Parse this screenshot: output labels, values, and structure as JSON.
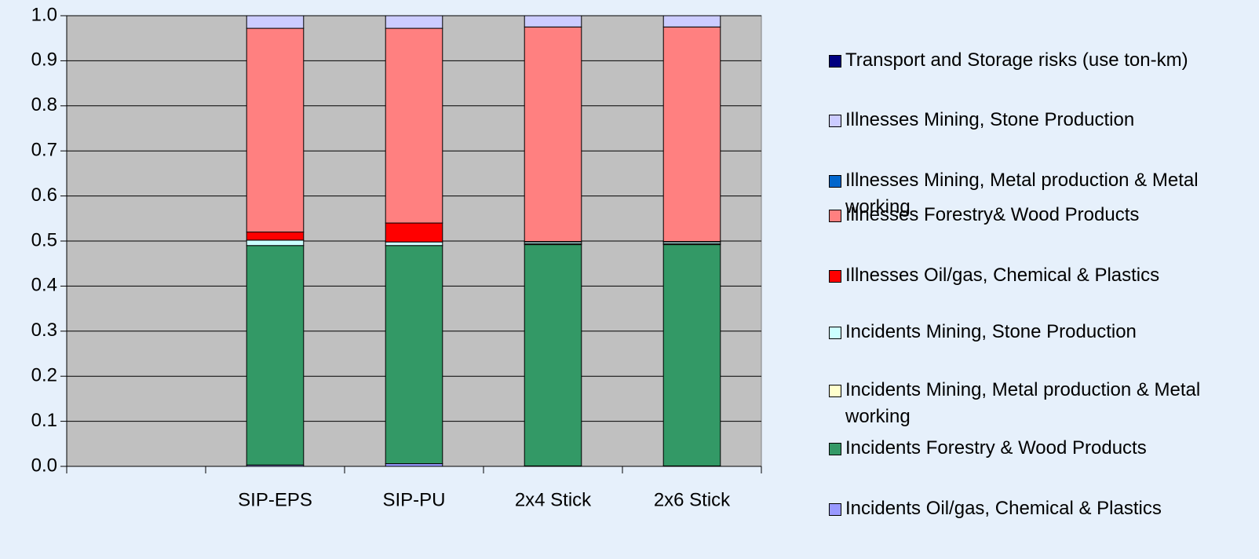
{
  "chart_data": {
    "type": "stacked_bar",
    "categories": [
      null,
      "SIP-EPS",
      "SIP-PU",
      "2x4 Stick",
      "2x6 Stick"
    ],
    "series": [
      {
        "name": "Incidents Oil/gas, Chemical & Plastics",
        "color": "#9999ff",
        "values": [
          null,
          0.003,
          0.006,
          0.001,
          0.001
        ]
      },
      {
        "name": "Incidents Forestry & Wood Products",
        "color": "#339966",
        "values": [
          null,
          0.487,
          0.484,
          0.491,
          0.491
        ]
      },
      {
        "name": "Incidents Mining, Metal production & Metal working",
        "color": "#ffffcc",
        "values": [
          null,
          0,
          0,
          0.002,
          0.002
        ]
      },
      {
        "name": "Incidents Mining, Stone Production",
        "color": "#ccffff",
        "values": [
          null,
          0.012,
          0.008,
          0.004,
          0.004
        ]
      },
      {
        "name": "Illnesses Oil/gas, Chemical & Plastics",
        "color": "#ff0000",
        "values": [
          null,
          0.018,
          0.042,
          0.001,
          0.001
        ]
      },
      {
        "name": "Illnesses Forestry& Wood Products",
        "color": "#ff8080",
        "values": [
          null,
          0.452,
          0.432,
          0.476,
          0.476
        ]
      },
      {
        "name": "Illnesses Mining, Metal production & Metal working",
        "color": "#0066cc",
        "values": [
          null,
          0,
          0,
          0,
          0
        ]
      },
      {
        "name": "Illnesses Mining, Stone Production",
        "color": "#ccccff",
        "values": [
          null,
          0.028,
          0.028,
          0.025,
          0.025
        ]
      },
      {
        "name": "Transport and Storage risks (use ton-km)",
        "color": "#000080",
        "values": [
          null,
          0,
          0,
          0,
          0
        ]
      }
    ],
    "ylim": [
      0,
      1
    ],
    "yticks": [
      {
        "value": 0,
        "label": "0.0"
      },
      0.1,
      0.2,
      0.3,
      0.4,
      0.5,
      0.6,
      0.7,
      0.8,
      0.9,
      {
        "value": 1,
        "label": "1.0"
      }
    ],
    "grid": true,
    "legend": "right"
  }
}
